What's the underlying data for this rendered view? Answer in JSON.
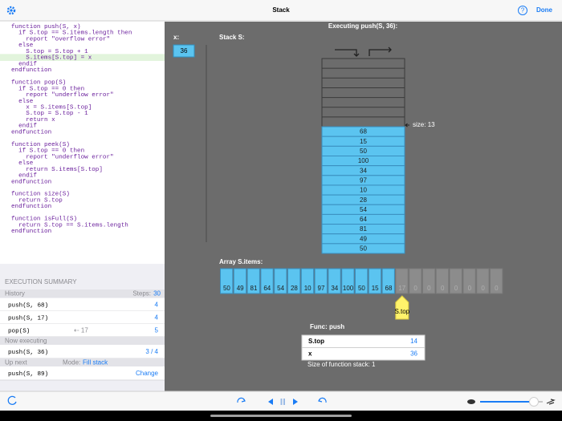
{
  "header": {
    "title": "Stack",
    "help": "?",
    "done": "Done"
  },
  "code": {
    "highlight_line": 5,
    "lines": [
      "function push(S, x)",
      "  if S.top == S.items.length then",
      "    report \"overflow error\"",
      "  else",
      "    S.top = S.top + 1",
      "    S.items[S.top] = x",
      "  endif",
      "endfunction",
      "",
      "function pop(S)",
      "  if S.top == 0 then",
      "    report \"underflow error\"",
      "  else",
      "    x = S.items[S.top]",
      "    S.top = S.top - 1",
      "    return x",
      "  endif",
      "endfunction",
      "",
      "function peek(S)",
      "  if S.top == 0 then",
      "    report \"underflow error\"",
      "  else",
      "    return S.items[S.top]",
      "  endif",
      "endfunction",
      "",
      "function size(S)",
      "  return S.top",
      "endfunction",
      "",
      "function isFull(S)",
      "  return S.top == S.items.length",
      "endfunction"
    ]
  },
  "summary": {
    "title": "EXECUTION SUMMARY",
    "history_label": "History",
    "steps_label": "Steps:",
    "steps": 30,
    "history": [
      {
        "call": "push(S, 68)",
        "steps": 4
      },
      {
        "call": "push(S, 17)",
        "steps": 4
      },
      {
        "call": "pop(S)",
        "result": "⇠ 17",
        "steps": 5
      }
    ],
    "now_label": "Now executing",
    "now": {
      "call": "push(S, 36)",
      "progress": "3 / 4"
    },
    "next_label": "Up next",
    "mode_label": "Mode:",
    "mode": "Fill stack",
    "next": {
      "call": "push(S, 89)",
      "action": "Change"
    }
  },
  "visual": {
    "title": "Executing push(S, 36):",
    "x_label": "x:",
    "x": 36,
    "stack_label": "Stack S:",
    "stack": [
      68,
      15,
      50,
      100,
      34,
      97,
      10,
      28,
      54,
      64,
      81,
      49,
      50
    ],
    "size_label": "size:",
    "size": 13,
    "array_label": "Array S.items:",
    "array": [
      50,
      49,
      81,
      64,
      54,
      28,
      10,
      97,
      34,
      100,
      50,
      15,
      68,
      17,
      0,
      0,
      0,
      0,
      0,
      0,
      0
    ],
    "pointer": "S.top",
    "frame": {
      "title": "Func: push",
      "rows": [
        [
          "S.top",
          14
        ],
        [
          "x",
          36
        ]
      ],
      "footer": "Size of function stack: 1"
    }
  }
}
